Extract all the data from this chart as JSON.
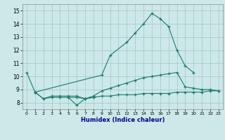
{
  "xlabel": "Humidex (Indice chaleur)",
  "color": "#1a7a6e",
  "bg_color": "#cce8e8",
  "grid_color": "#aacccc",
  "xlim": [
    -0.5,
    23.5
  ],
  "ylim": [
    7.5,
    15.5
  ],
  "yticks": [
    8,
    9,
    10,
    11,
    12,
    13,
    14,
    15
  ],
  "xticks": [
    0,
    1,
    2,
    3,
    4,
    5,
    6,
    7,
    8,
    9,
    10,
    11,
    12,
    13,
    14,
    15,
    16,
    17,
    18,
    19,
    20,
    21,
    22,
    23
  ],
  "main_line_x": [
    0,
    1,
    9,
    10,
    12,
    13,
    14,
    15,
    16,
    17,
    18,
    19,
    20
  ],
  "main_line_y": [
    10.3,
    8.8,
    10.1,
    11.6,
    12.6,
    13.3,
    14.0,
    14.8,
    14.4,
    13.8,
    12.0,
    10.8,
    10.3
  ],
  "rise_line_x": [
    1,
    2,
    3,
    4,
    5,
    6,
    7,
    8,
    9,
    10,
    11,
    12,
    13,
    14,
    15,
    16,
    17,
    18,
    19,
    20,
    21,
    22,
    23
  ],
  "rise_line_y": [
    8.8,
    8.3,
    8.5,
    8.5,
    8.5,
    8.5,
    8.3,
    8.5,
    8.9,
    9.1,
    9.3,
    9.5,
    9.7,
    9.9,
    10.0,
    10.1,
    10.2,
    10.3,
    9.2,
    9.1,
    9.0,
    9.0,
    8.9
  ],
  "flat_line_x": [
    1,
    2,
    3,
    4,
    5,
    6,
    7,
    8,
    9,
    10,
    11,
    12,
    13,
    14,
    15,
    16,
    17,
    18,
    19,
    20,
    21,
    22,
    23
  ],
  "flat_line_y": [
    8.8,
    8.3,
    8.4,
    8.4,
    8.4,
    8.4,
    8.3,
    8.4,
    8.5,
    8.5,
    8.6,
    8.6,
    8.6,
    8.7,
    8.7,
    8.7,
    8.7,
    8.8,
    8.8,
    8.8,
    8.8,
    8.9,
    8.9
  ],
  "dip_line_x": [
    5,
    6,
    7,
    8
  ],
  "dip_line_y": [
    8.4,
    7.8,
    8.3,
    8.4
  ]
}
